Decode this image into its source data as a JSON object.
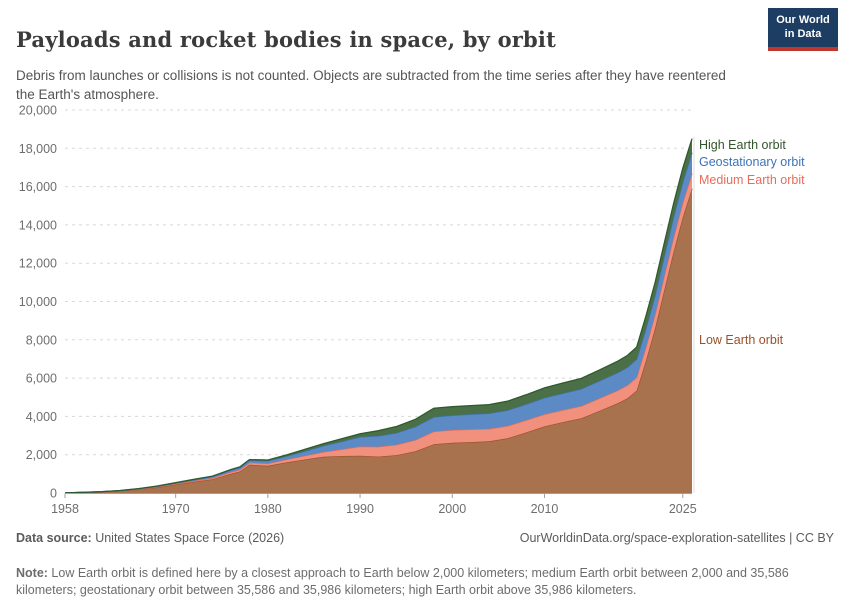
{
  "header": {
    "title": "Payloads and rocket bodies in space, by orbit",
    "subtitle": "Debris from launches or collisions is not counted. Objects are subtracted from the time series after they have reentered the Earth's atmosphere.",
    "logo": {
      "line1": "Our World",
      "line2": "in Data",
      "bg_color": "#1d3d63",
      "stripe_color": "#c0372d"
    }
  },
  "chart_data": {
    "type": "area",
    "stacked": true,
    "title": "Payloads and rocket bodies in space, by orbit",
    "xlabel": "",
    "ylabel": "",
    "xlim": [
      1958,
      2026
    ],
    "ylim": [
      0,
      20000
    ],
    "ytick_interval": 2000,
    "xticks": [
      1958,
      1970,
      1980,
      1990,
      2000,
      2010,
      2025
    ],
    "grid": "dashed-horizontal",
    "legend_position": "right-inline",
    "x": [
      1958,
      1960,
      1962,
      1964,
      1966,
      1968,
      1970,
      1972,
      1974,
      1976,
      1977,
      1978,
      1980,
      1982,
      1984,
      1986,
      1988,
      1990,
      1992,
      1994,
      1996,
      1998,
      2000,
      2002,
      2004,
      2006,
      2008,
      2010,
      2012,
      2014,
      2016,
      2018,
      2019,
      2020,
      2021,
      2022,
      2023,
      2024,
      2025,
      2026
    ],
    "series": [
      {
        "name": "Low Earth orbit",
        "fill": "#a9724e",
        "stroke": "#9a5129",
        "label_color": "#9a5129",
        "values": [
          3,
          30,
          60,
          110,
          190,
          300,
          450,
          590,
          720,
          1010,
          1130,
          1480,
          1420,
          1600,
          1750,
          1890,
          1930,
          1950,
          1900,
          1980,
          2180,
          2550,
          2620,
          2660,
          2700,
          2860,
          3160,
          3480,
          3700,
          3900,
          4300,
          4700,
          4950,
          5350,
          6900,
          8600,
          10600,
          12600,
          14400,
          15900
        ]
      },
      {
        "name": "Medium Earth orbit",
        "fill": "#f0907d",
        "stroke": "#e56e5a",
        "label_color": "#e56e5a",
        "values": [
          0,
          2,
          4,
          8,
          14,
          22,
          32,
          48,
          65,
          85,
          95,
          105,
          120,
          150,
          190,
          250,
          350,
          480,
          520,
          550,
          590,
          660,
          670,
          665,
          655,
          645,
          635,
          630,
          635,
          645,
          655,
          670,
          680,
          690,
          705,
          720,
          735,
          750,
          765,
          780
        ]
      },
      {
        "name": "Geostationary orbit",
        "fill": "#5b8ac5",
        "stroke": "#3d73b8",
        "label_color": "#3d73b8",
        "values": [
          0,
          1,
          3,
          8,
          18,
          30,
          40,
          55,
          75,
          100,
          110,
          120,
          135,
          170,
          240,
          320,
          410,
          500,
          560,
          620,
          690,
          760,
          770,
          790,
          800,
          820,
          840,
          860,
          875,
          890,
          910,
          930,
          940,
          950,
          975,
          1000,
          1030,
          1055,
          1075,
          1090
        ]
      },
      {
        "name": "High Earth orbit",
        "fill": "#4b7047",
        "stroke": "#2e5a2c",
        "label_color": "#33552d",
        "values": [
          0,
          1,
          2,
          4,
          8,
          12,
          16,
          20,
          25,
          32,
          36,
          40,
          48,
          65,
          95,
          115,
          140,
          160,
          280,
          330,
          390,
          460,
          445,
          450,
          460,
          470,
          495,
          520,
          535,
          550,
          570,
          600,
          615,
          630,
          650,
          670,
          690,
          710,
          720,
          730
        ]
      }
    ],
    "axis_colors": {
      "grid": "#d8d8d8",
      "axis_line": "#a0a0a0",
      "tick_text": "#6e6e6e",
      "end_line": "#dddddd"
    }
  },
  "footer": {
    "source_label": "Data source:",
    "source_text": " United States Space Force (2026)",
    "url_text": "OurWorldinData.org/space-exploration-satellites | CC BY",
    "note_label": "Note:",
    "note_text": " Low Earth orbit is defined here by a closest approach to Earth below 2,000 kilometers; medium Earth orbit between 2,000 and 35,586 kilometers; geostationary orbit between 35,586 and 35,986 kilometers; high Earth orbit above 35,986 kilometers."
  }
}
